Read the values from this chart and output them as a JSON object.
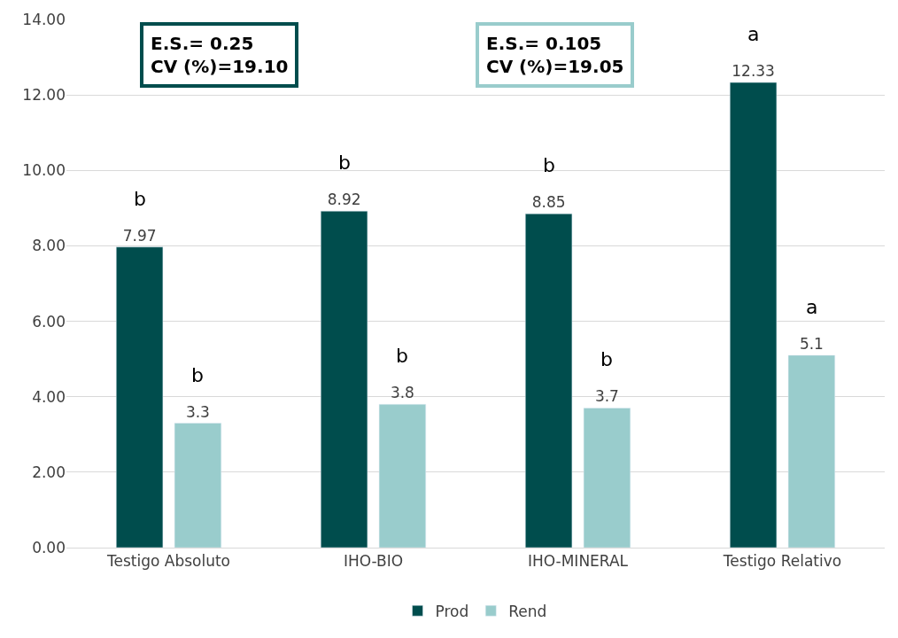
{
  "chart_data": {
    "type": "bar",
    "categories": [
      "Testigo Absoluto",
      "IHO-BIO",
      "IHO-MINERAL",
      "Testigo Relativo"
    ],
    "series": [
      {
        "name": "Prod",
        "color": "#004d4d",
        "values": [
          7.97,
          8.92,
          8.85,
          12.33
        ]
      },
      {
        "name": "Rend",
        "color": "#99cccc",
        "values": [
          3.3,
          3.8,
          3.7,
          5.1
        ]
      }
    ],
    "ylim": [
      0,
      14
    ],
    "yticks": [
      {
        "value": 0,
        "label": "0.00"
      },
      {
        "value": 2,
        "label": "2.00"
      },
      {
        "value": 4,
        "label": "4.00"
      },
      {
        "value": 6,
        "label": "6.00"
      },
      {
        "value": 8,
        "label": "8.00"
      },
      {
        "value": 10,
        "label": "10.00"
      },
      {
        "value": 12,
        "label": "12.00"
      },
      {
        "value": 14,
        "label": "14.00"
      }
    ],
    "grid": "y",
    "legend": "bottom",
    "data_labels": true,
    "annotations": [
      "E.S.= 0.25\nCV (%)=19.10",
      "E.S.= 0.105\nCV (%)=19.05",
      "b",
      "b",
      "b",
      "b",
      "b",
      "b",
      "a",
      "a"
    ]
  }
}
